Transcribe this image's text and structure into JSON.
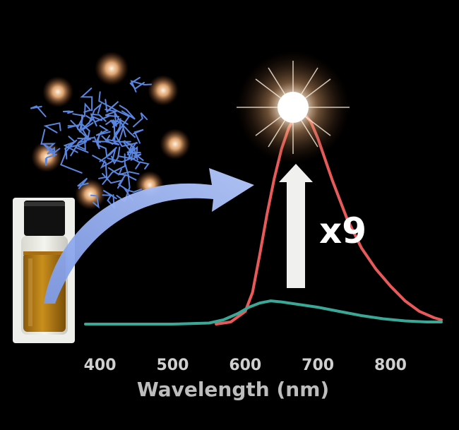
{
  "chart_data": {
    "type": "line",
    "xlabel": "Wavelength (nm)",
    "ylabel": "",
    "xlim": [
      345,
      870
    ],
    "ylim": [
      0,
      1.05
    ],
    "x_ticks": [
      400,
      500,
      600,
      700,
      800
    ],
    "annotation": "x9",
    "series": [
      {
        "color": "#e85a5a",
        "points": [
          [
            560,
            0.0
          ],
          [
            580,
            0.01
          ],
          [
            600,
            0.06
          ],
          [
            610,
            0.15
          ],
          [
            620,
            0.33
          ],
          [
            630,
            0.52
          ],
          [
            640,
            0.69
          ],
          [
            650,
            0.83
          ],
          [
            660,
            0.93
          ],
          [
            670,
            0.99
          ],
          [
            680,
            1.0
          ],
          [
            690,
            0.96
          ],
          [
            700,
            0.88
          ],
          [
            710,
            0.78
          ],
          [
            720,
            0.68
          ],
          [
            740,
            0.5
          ],
          [
            760,
            0.36
          ],
          [
            780,
            0.26
          ],
          [
            800,
            0.18
          ],
          [
            820,
            0.11
          ],
          [
            840,
            0.06
          ],
          [
            860,
            0.03
          ],
          [
            870,
            0.02
          ]
        ]
      },
      {
        "color": "#3aa896",
        "points": [
          [
            380,
            0.0
          ],
          [
            500,
            0.0
          ],
          [
            550,
            0.005
          ],
          [
            570,
            0.02
          ],
          [
            590,
            0.05
          ],
          [
            605,
            0.08
          ],
          [
            620,
            0.1
          ],
          [
            635,
            0.11
          ],
          [
            650,
            0.105
          ],
          [
            670,
            0.095
          ],
          [
            700,
            0.08
          ],
          [
            730,
            0.06
          ],
          [
            760,
            0.04
          ],
          [
            790,
            0.025
          ],
          [
            820,
            0.015
          ],
          [
            850,
            0.01
          ],
          [
            870,
            0.01
          ]
        ]
      }
    ]
  }
}
